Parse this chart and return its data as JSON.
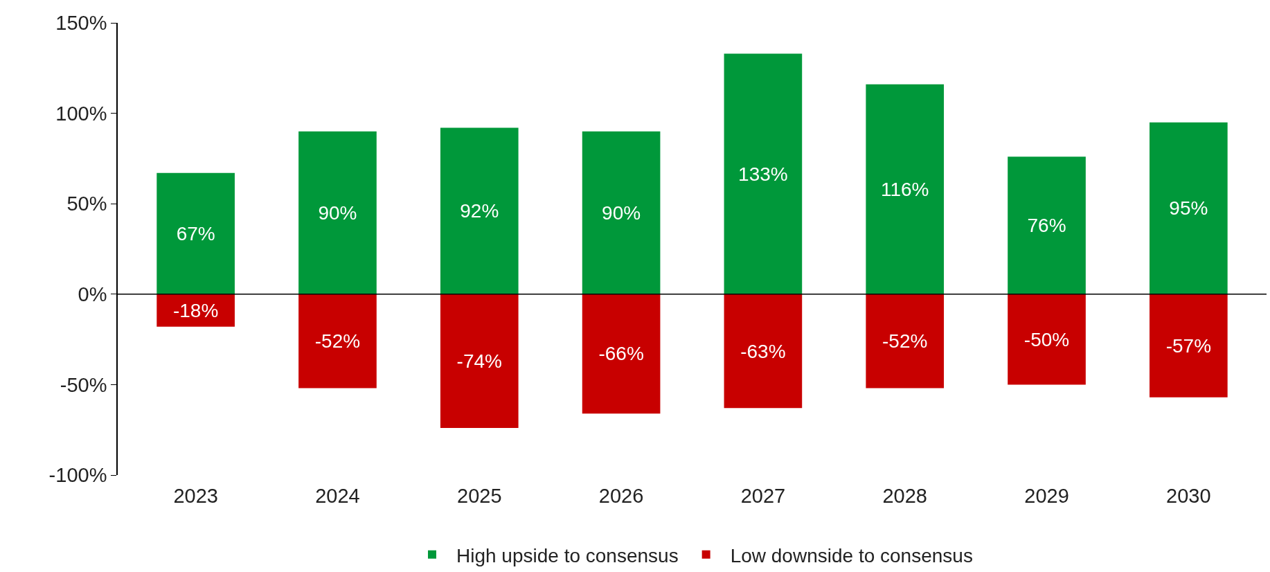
{
  "chart_data": {
    "type": "bar",
    "stacked": true,
    "categories": [
      "2023",
      "2024",
      "2025",
      "2026",
      "2027",
      "2028",
      "2029",
      "2030"
    ],
    "series": [
      {
        "name": "High upside to consensus",
        "color": "#00983a",
        "values": [
          67,
          90,
          92,
          90,
          133,
          116,
          76,
          95
        ],
        "value_labels": [
          "67%",
          "90%",
          "92%",
          "90%",
          "133%",
          "116%",
          "76%",
          "95%"
        ]
      },
      {
        "name": "Low downside to consensus",
        "color": "#c80000",
        "values": [
          -18,
          -52,
          -74,
          -66,
          -63,
          -52,
          -50,
          -57
        ],
        "value_labels": [
          "-18%",
          "-52%",
          "-74%",
          "-66%",
          "-63%",
          "-52%",
          "-50%",
          "-57%"
        ]
      }
    ],
    "ylim": [
      -100,
      150
    ],
    "yticks": [
      {
        "value": -100,
        "label": "-100%"
      },
      {
        "value": -50,
        "label": "-50%"
      },
      {
        "value": 0,
        "label": "0%"
      },
      {
        "value": 50,
        "label": "50%"
      },
      {
        "value": 100,
        "label": "100%"
      },
      {
        "value": 150,
        "label": "150%"
      }
    ],
    "ref_lines": [
      {
        "axis": "y",
        "value": 0,
        "color": "#000000"
      }
    ],
    "legend": "bottom"
  }
}
